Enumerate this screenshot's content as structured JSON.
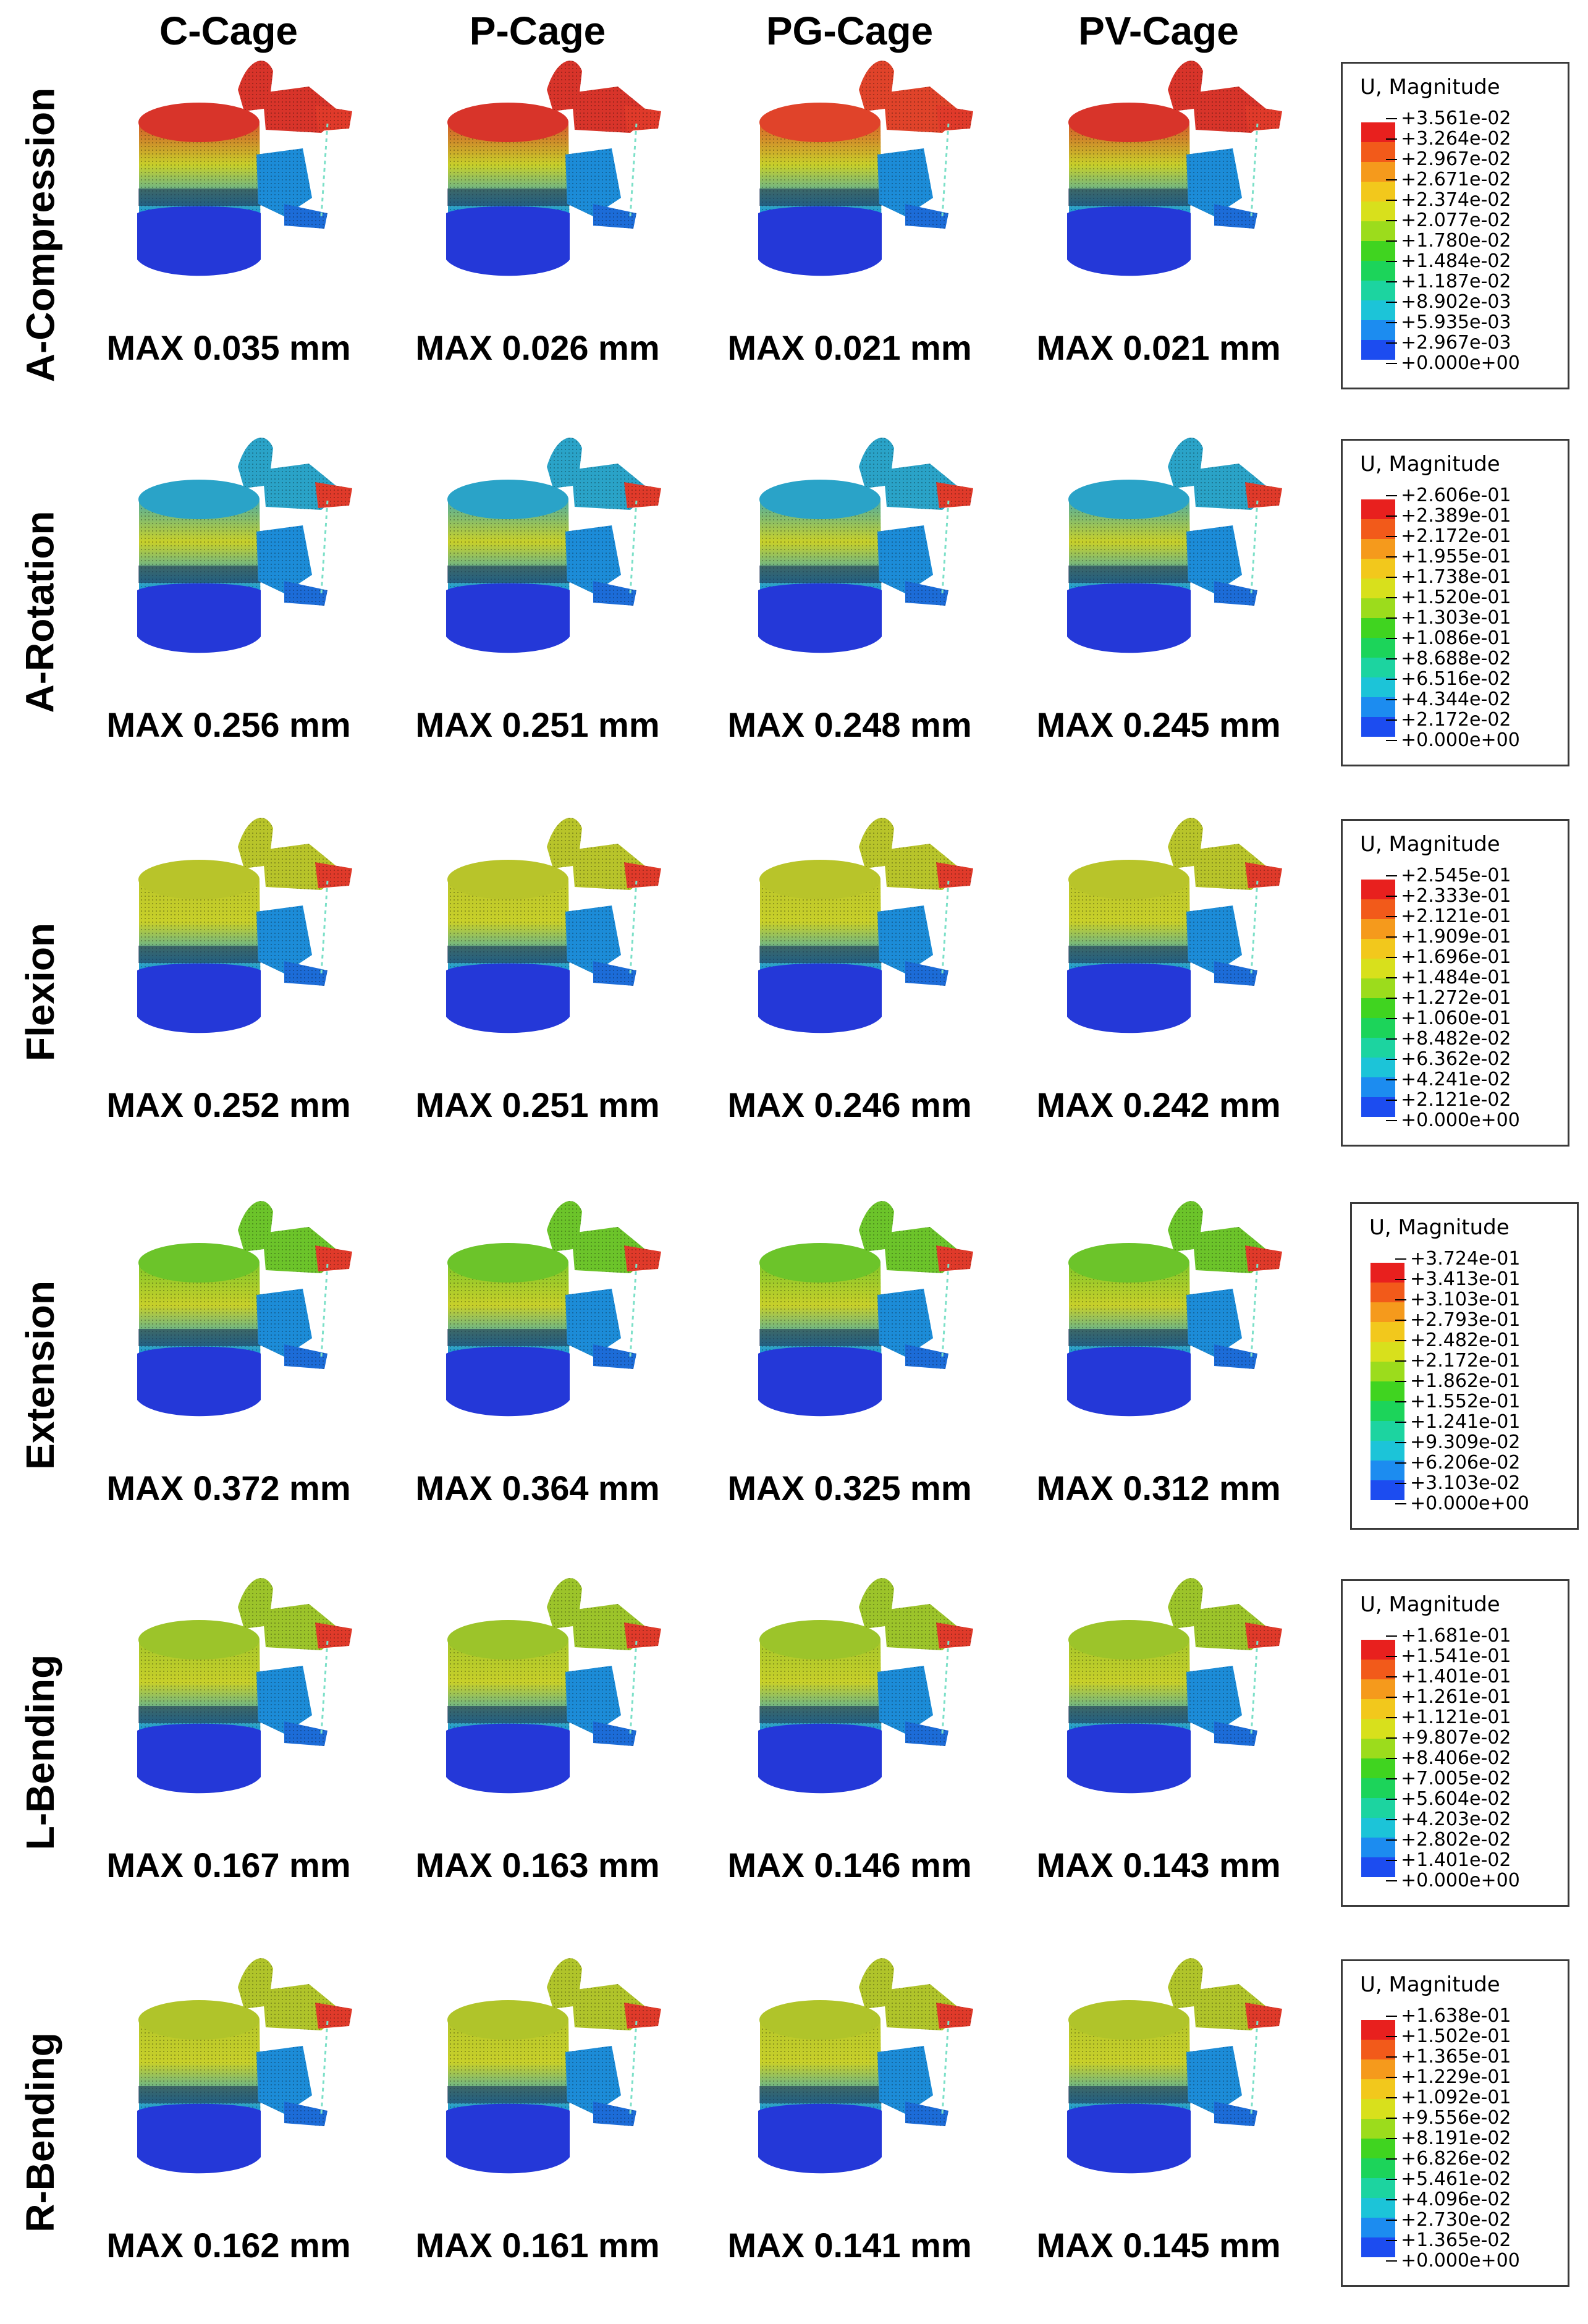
{
  "columns": [
    "C-Cage",
    "P-Cage",
    "PG-Cage",
    "PV-Cage"
  ],
  "rows": [
    {
      "label": "A-Compression",
      "max": [
        "MAX 0.035 mm",
        "MAX 0.026 mm",
        "MAX 0.021 mm",
        "MAX 0.021 mm"
      ],
      "legend_title": "U, Magnitude",
      "legend_values": [
        "+3.561e-02",
        "+3.264e-02",
        "+2.967e-02",
        "+2.671e-02",
        "+2.374e-02",
        "+2.077e-02",
        "+1.780e-02",
        "+1.484e-02",
        "+1.187e-02",
        "+8.902e-03",
        "+5.935e-03",
        "+2.967e-03",
        "+0.000e+00"
      ],
      "palette": [
        "#d8342a",
        "#d8342a",
        "#e0432a",
        "#d8342a"
      ]
    },
    {
      "label": "A-Rotation",
      "max": [
        "MAX 0.256 mm",
        "MAX 0.251 mm",
        "MAX 0.248 mm",
        "MAX 0.245 mm"
      ],
      "legend_title": "U, Magnitude",
      "legend_values": [
        "+2.606e-01",
        "+2.389e-01",
        "+2.172e-01",
        "+1.955e-01",
        "+1.738e-01",
        "+1.520e-01",
        "+1.303e-01",
        "+1.086e-01",
        "+8.688e-02",
        "+6.516e-02",
        "+4.344e-02",
        "+2.172e-02",
        "+0.000e+00"
      ],
      "palette": [
        "#2aa3c8",
        "#2aa3c8",
        "#2aa3c8",
        "#2aa3c8"
      ]
    },
    {
      "label": "Flexion",
      "max": [
        "MAX 0.252 mm",
        "MAX 0.251 mm",
        "MAX 0.246 mm",
        "MAX 0.242 mm"
      ],
      "legend_title": "U, Magnitude",
      "legend_values": [
        "+2.545e-01",
        "+2.333e-01",
        "+2.121e-01",
        "+1.909e-01",
        "+1.696e-01",
        "+1.484e-01",
        "+1.272e-01",
        "+1.060e-01",
        "+8.482e-02",
        "+6.362e-02",
        "+4.241e-02",
        "+2.121e-02",
        "+0.000e+00"
      ],
      "palette": [
        "#b8c42a",
        "#b8c42a",
        "#b8c42a",
        "#b8c42a"
      ]
    },
    {
      "label": "Extension",
      "max": [
        "MAX 0.372 mm",
        "MAX 0.364 mm",
        "MAX 0.325 mm",
        "MAX 0.312 mm"
      ],
      "legend_title": "U, Magnitude",
      "legend_values": [
        "+3.724e-01",
        "+3.413e-01",
        "+3.103e-01",
        "+2.793e-01",
        "+2.482e-01",
        "+2.172e-01",
        "+1.862e-01",
        "+1.552e-01",
        "+1.241e-01",
        "+9.309e-02",
        "+6.206e-02",
        "+3.103e-02",
        "+0.000e+00"
      ],
      "palette": [
        "#6cc42a",
        "#6cc42a",
        "#6cc42a",
        "#6cc42a"
      ]
    },
    {
      "label": "L-Bending",
      "max": [
        "MAX 0.167 mm",
        "MAX 0.163 mm",
        "MAX 0.146 mm",
        "MAX 0.143 mm"
      ],
      "legend_title": "U, Magnitude",
      "legend_values": [
        "+1.681e-01",
        "+1.541e-01",
        "+1.401e-01",
        "+1.261e-01",
        "+1.121e-01",
        "+9.807e-02",
        "+8.406e-02",
        "+7.005e-02",
        "+5.604e-02",
        "+4.203e-02",
        "+2.802e-02",
        "+1.401e-02",
        "+0.000e+00"
      ],
      "palette": [
        "#9cc42a",
        "#9cc42a",
        "#9cc42a",
        "#9cc42a"
      ]
    },
    {
      "label": "R-Bending",
      "max": [
        "MAX 0.162 mm",
        "MAX 0.161 mm",
        "MAX 0.141 mm",
        "MAX 0.145 mm"
      ],
      "legend_title": "U, Magnitude",
      "legend_values": [
        "+1.638e-01",
        "+1.502e-01",
        "+1.365e-01",
        "+1.229e-01",
        "+1.092e-01",
        "+9.556e-02",
        "+8.191e-02",
        "+6.826e-02",
        "+5.461e-02",
        "+4.096e-02",
        "+2.730e-02",
        "+1.365e-02",
        "+0.000e+00"
      ],
      "palette": [
        "#b0c42a",
        "#b0c42a",
        "#b0c42a",
        "#b0c42a"
      ]
    }
  ],
  "scale_colors": [
    "#e8201e",
    "#f25a1a",
    "#f59a1c",
    "#f2c81c",
    "#d8e01c",
    "#9cdc1c",
    "#40d420",
    "#1cd45a",
    "#1cd4a0",
    "#1cc4d8",
    "#1c8cf0",
    "#1c4cf0",
    "#1c1cf0"
  ]
}
